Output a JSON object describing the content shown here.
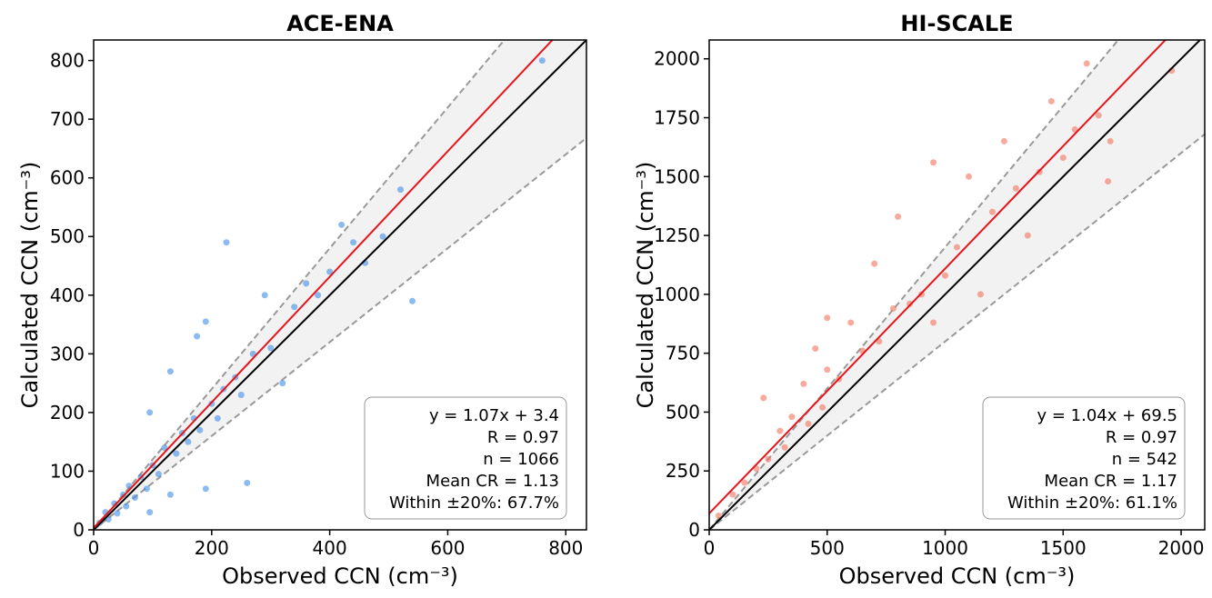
{
  "chart_data": [
    {
      "type": "scatter",
      "title": "ACE-ENA",
      "x_label": "Observed CCN (cm⁻³)",
      "y_label": "Calculated CCN (cm⁻³)",
      "xlim": [
        0,
        835
      ],
      "ylim": [
        0,
        835
      ],
      "xticks": [
        0,
        200,
        400,
        600,
        800
      ],
      "yticks": [
        0,
        100,
        200,
        300,
        400,
        500,
        600,
        700,
        800
      ],
      "series": [
        {
          "color": "#3d8ee6",
          "x": [
            10,
            20,
            25,
            35,
            40,
            50,
            55,
            60,
            70,
            80,
            90,
            95,
            100,
            110,
            120,
            130,
            140,
            150,
            160,
            170,
            175,
            180,
            190,
            200,
            210,
            220,
            225,
            240,
            250,
            260,
            270,
            290,
            300,
            320,
            340,
            360,
            380,
            400,
            420,
            440,
            460,
            490,
            520,
            540,
            760,
            190,
            130,
            95
          ],
          "values": [
            12,
            30,
            18,
            45,
            28,
            60,
            40,
            75,
            55,
            90,
            70,
            200,
            110,
            95,
            140,
            270,
            130,
            165,
            150,
            190,
            330,
            170,
            355,
            215,
            190,
            240,
            490,
            260,
            230,
            80,
            300,
            400,
            310,
            250,
            380,
            420,
            400,
            440,
            520,
            490,
            455,
            500,
            580,
            390,
            800,
            70,
            60,
            30
          ]
        }
      ],
      "fit": {
        "slope": 1.07,
        "intercept": 3.4,
        "color": "#e8141c"
      },
      "reference_band": [
        0.8,
        1.2
      ],
      "annotation": [
        "y = 1.07x + 3.4",
        "R = 0.97",
        "n = 1066",
        "Mean CR = 1.13",
        "Within ±20%: 67.7%"
      ]
    },
    {
      "type": "scatter",
      "title": "HI-SCALE",
      "x_label": "Observed CCN (cm⁻³)",
      "y_label": "Calculated CCN (cm⁻³)",
      "xlim": [
        0,
        2100
      ],
      "ylim": [
        0,
        2080
      ],
      "xticks": [
        0,
        500,
        1000,
        1500,
        2000
      ],
      "yticks": [
        0,
        250,
        500,
        750,
        1000,
        1250,
        1500,
        1750,
        2000
      ],
      "series": [
        {
          "color": "#f4715a",
          "x": [
            40,
            100,
            150,
            200,
            230,
            250,
            300,
            320,
            350,
            400,
            420,
            450,
            480,
            500,
            550,
            600,
            650,
            700,
            720,
            780,
            800,
            850,
            900,
            950,
            1000,
            1050,
            1100,
            1150,
            1200,
            1250,
            1300,
            1350,
            1400,
            1450,
            1500,
            1550,
            1600,
            1650,
            1700,
            1960,
            1690,
            500,
            950
          ],
          "values": [
            60,
            150,
            200,
            260,
            560,
            300,
            420,
            350,
            480,
            620,
            450,
            770,
            520,
            680,
            640,
            880,
            760,
            1130,
            800,
            940,
            1330,
            960,
            1000,
            1560,
            1080,
            1200,
            1500,
            1000,
            1350,
            1650,
            1450,
            1250,
            1520,
            1820,
            1580,
            1700,
            1980,
            1760,
            1650,
            1950,
            1480,
            900,
            880
          ]
        }
      ],
      "fit": {
        "slope": 1.04,
        "intercept": 69.5,
        "color": "#e8141c"
      },
      "reference_band": [
        0.8,
        1.2
      ],
      "annotation": [
        "y = 1.04x + 69.5",
        "R = 0.97",
        "n = 542",
        "Mean CR = 1.17",
        "Within ±20%: 61.1%"
      ]
    }
  ]
}
